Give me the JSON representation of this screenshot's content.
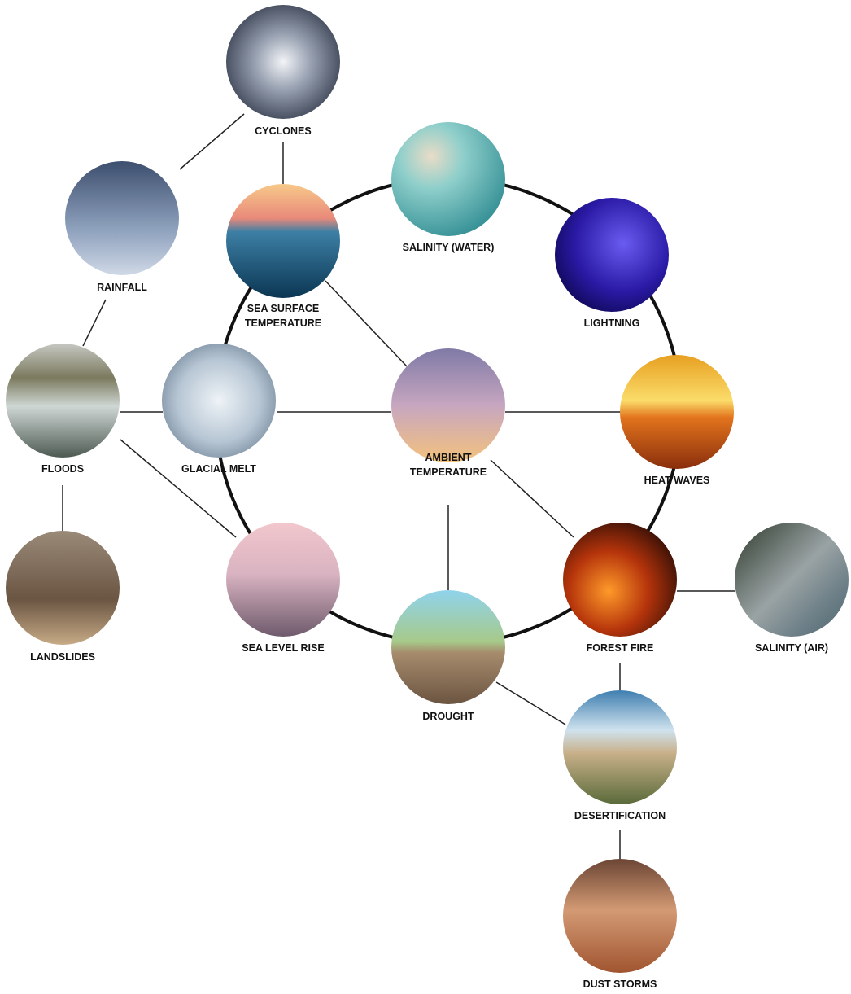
{
  "nodes": [
    {
      "lines": [
        "CYCLONES"
      ]
    },
    {
      "lines": [
        "RAINFALL"
      ]
    },
    {
      "lines": [
        "SEA SURFACE",
        "TEMPERATURE"
      ]
    },
    {
      "lines": [
        "SALINITY (WATER)"
      ]
    },
    {
      "lines": [
        "LIGHTNING"
      ]
    },
    {
      "lines": [
        "FLOODS"
      ]
    },
    {
      "lines": [
        "GLACIAL MELT"
      ]
    },
    {
      "lines": [
        "AMBIENT",
        "TEMPERATURE"
      ]
    },
    {
      "lines": [
        "HEAT WAVES"
      ]
    },
    {
      "lines": [
        "LANDSLIDES"
      ]
    },
    {
      "lines": [
        "SEA LEVEL RISE"
      ]
    },
    {
      "lines": [
        "DROUGHT"
      ]
    },
    {
      "lines": [
        "FOREST FIRE"
      ]
    },
    {
      "lines": [
        "SALINITY (AIR)"
      ]
    },
    {
      "lines": [
        "DESERTIFICATION"
      ]
    },
    {
      "lines": [
        "DUST STORMS"
      ]
    }
  ]
}
